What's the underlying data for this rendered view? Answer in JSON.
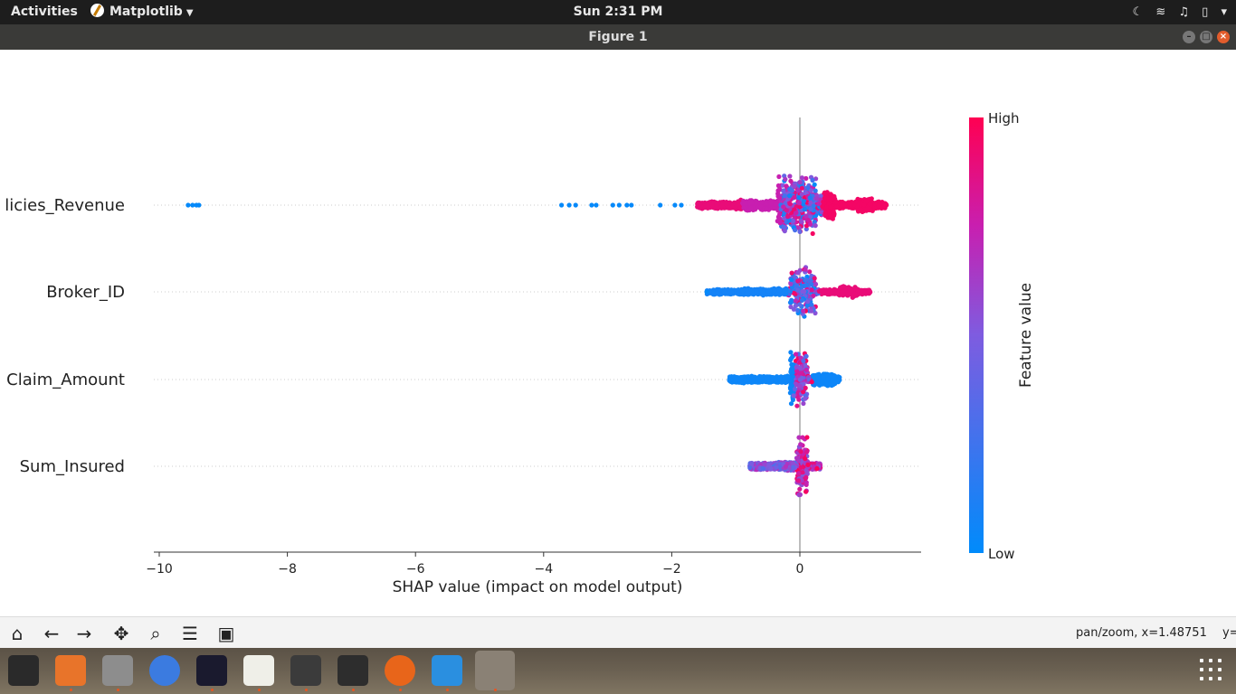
{
  "topbar": {
    "activities": "Activities",
    "app_name": "Matplotlib",
    "clock": "Sun  2:31 PM"
  },
  "window": {
    "title": "Figure 1"
  },
  "chart_data": {
    "type": "scatter",
    "subtype": "shap-beeswarm",
    "title": "",
    "xlabel": "SHAP value (impact on model output)",
    "ylabel": "",
    "xlim": [
      -10.1,
      1.9
    ],
    "xticks": [
      -10,
      -8,
      -6,
      -4,
      -2,
      0
    ],
    "xtick_labels": [
      "−10",
      "−8",
      "−6",
      "−4",
      "−2",
      "0"
    ],
    "features": [
      "Policies_Revenue",
      "Broker_ID",
      "Claim_Amount",
      "Sum_Insured"
    ],
    "feature_labels_visible": [
      "licies_Revenue",
      "Broker_ID",
      "Claim_Amount",
      "Sum_Insured"
    ],
    "series": [
      {
        "feature": "Policies_Revenue",
        "min": -9.55,
        "max": 1.35,
        "outliers_low": [
          -9.55,
          -9.48,
          -9.42,
          -9.38,
          -3.72,
          -3.6,
          -3.5,
          -3.25,
          -3.18,
          -2.92,
          -2.82,
          -2.7,
          -2.63,
          -2.18,
          -1.95,
          -1.85
        ]
      },
      {
        "feature": "Broker_ID",
        "min": -1.45,
        "max": 1.1,
        "outliers_low": [
          -1.45
        ]
      },
      {
        "feature": "Claim_Amount",
        "min": -1.1,
        "max": 0.62,
        "outliers_low": []
      },
      {
        "feature": "Sum_Insured",
        "min": -0.78,
        "max": 0.32,
        "outliers_low": []
      }
    ],
    "colorbar": {
      "label": "Feature value",
      "high_label": "High",
      "low_label": "Low",
      "high_color": "#ff0052",
      "low_color": "#008bfb"
    },
    "grid": false
  },
  "toolbar": {
    "icons": [
      "home-icon",
      "back-icon",
      "forward-icon",
      "pan-icon",
      "zoom-icon",
      "configure-icon",
      "save-icon"
    ],
    "status": "pan/zoom, x=1.48751",
    "status_tail": "y="
  }
}
